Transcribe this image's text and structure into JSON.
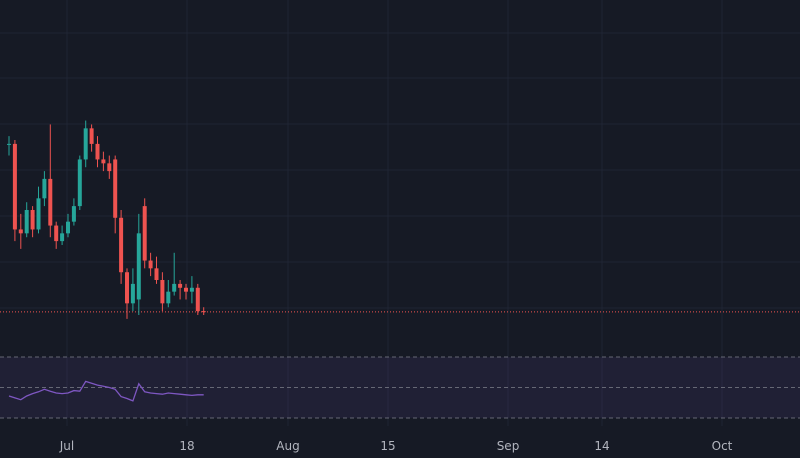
{
  "chart_data": {
    "type": "candlestick",
    "x_ticks": [
      "Jul",
      "18",
      "Aug",
      "15",
      "Sep",
      "14",
      "Oct"
    ],
    "colors": {
      "background": "#161a25",
      "grid": "#1f2433",
      "up": "#26a69a",
      "down": "#ef5350",
      "last_price_line": "#ef5350",
      "rsi_line": "#7e57c2",
      "rsi_band": "#7e57c2",
      "tick_label": "#b2b5be"
    },
    "price_scale": {
      "min": 1,
      "max": 10
    },
    "last_price": 1.98,
    "candles": [
      {
        "t": "Jun 27",
        "o": 6.3,
        "h": 6.5,
        "l": 6.0,
        "c": 6.3
      },
      {
        "t": "Jun 28",
        "o": 6.3,
        "h": 6.4,
        "l": 3.8,
        "c": 4.1
      },
      {
        "t": "Jun 29",
        "o": 4.1,
        "h": 4.5,
        "l": 3.6,
        "c": 4.0
      },
      {
        "t": "Jun 30",
        "o": 4.0,
        "h": 4.8,
        "l": 3.9,
        "c": 4.6
      },
      {
        "t": "Jul 1",
        "o": 4.6,
        "h": 4.7,
        "l": 3.9,
        "c": 4.1
      },
      {
        "t": "Jul 2",
        "o": 4.1,
        "h": 5.2,
        "l": 4.0,
        "c": 4.9
      },
      {
        "t": "Jul 3",
        "o": 4.9,
        "h": 5.6,
        "l": 4.7,
        "c": 5.4
      },
      {
        "t": "Jul 4",
        "o": 5.4,
        "h": 6.8,
        "l": 3.9,
        "c": 4.2
      },
      {
        "t": "Jul 5",
        "o": 4.2,
        "h": 4.3,
        "l": 3.6,
        "c": 3.8
      },
      {
        "t": "Jul 6",
        "o": 3.8,
        "h": 4.2,
        "l": 3.7,
        "c": 4.0
      },
      {
        "t": "Jul 7",
        "o": 4.0,
        "h": 4.5,
        "l": 3.9,
        "c": 4.3
      },
      {
        "t": "Jul 8",
        "o": 4.3,
        "h": 4.9,
        "l": 4.2,
        "c": 4.7
      },
      {
        "t": "Jul 9",
        "o": 4.7,
        "h": 6.0,
        "l": 4.6,
        "c": 5.9
      },
      {
        "t": "Jul 10",
        "o": 5.9,
        "h": 6.9,
        "l": 5.7,
        "c": 6.7
      },
      {
        "t": "Jul 11",
        "o": 6.7,
        "h": 6.8,
        "l": 6.1,
        "c": 6.3
      },
      {
        "t": "Jul 12",
        "o": 6.3,
        "h": 6.5,
        "l": 5.7,
        "c": 5.9
      },
      {
        "t": "Jul 13",
        "o": 5.9,
        "h": 6.1,
        "l": 5.6,
        "c": 5.8
      },
      {
        "t": "Jul 14",
        "o": 5.8,
        "h": 6.0,
        "l": 5.4,
        "c": 5.6
      },
      {
        "t": "Jul 15",
        "o": 5.9,
        "h": 6.0,
        "l": 4.0,
        "c": 4.4
      },
      {
        "t": "Jul 16",
        "o": 4.4,
        "h": 4.6,
        "l": 2.7,
        "c": 3.0
      },
      {
        "t": "Jul 17",
        "o": 3.0,
        "h": 3.1,
        "l": 1.8,
        "c": 2.2
      },
      {
        "t": "Jul 18",
        "o": 2.2,
        "h": 3.1,
        "l": 2.0,
        "c": 2.7
      },
      {
        "t": "Jul 19",
        "o": 2.3,
        "h": 4.5,
        "l": 1.9,
        "c": 4.0
      },
      {
        "t": "Jul 20",
        "o": 4.7,
        "h": 4.9,
        "l": 3.1,
        "c": 3.3
      },
      {
        "t": "Jul 21",
        "o": 3.3,
        "h": 3.5,
        "l": 2.9,
        "c": 3.1
      },
      {
        "t": "Jul 22",
        "o": 3.1,
        "h": 3.4,
        "l": 2.7,
        "c": 2.8
      },
      {
        "t": "Jul 23",
        "o": 2.8,
        "h": 3.0,
        "l": 2.0,
        "c": 2.2
      },
      {
        "t": "Jul 24",
        "o": 2.2,
        "h": 2.8,
        "l": 2.1,
        "c": 2.5
      },
      {
        "t": "Jul 25",
        "o": 2.5,
        "h": 3.5,
        "l": 2.4,
        "c": 2.7
      },
      {
        "t": "Jul 26",
        "o": 2.7,
        "h": 2.8,
        "l": 2.3,
        "c": 2.6
      },
      {
        "t": "Jul 27",
        "o": 2.6,
        "h": 2.7,
        "l": 2.3,
        "c": 2.5
      },
      {
        "t": "Jul 28",
        "o": 2.5,
        "h": 2.9,
        "l": 2.2,
        "c": 2.6
      },
      {
        "t": "Jul 29",
        "o": 2.6,
        "h": 2.7,
        "l": 1.9,
        "c": 2.0
      },
      {
        "t": "Jul 30",
        "o": 2.0,
        "h": 2.1,
        "l": 1.9,
        "c": 1.98
      }
    ],
    "rsi": {
      "band": [
        30,
        70
      ],
      "range": [
        0,
        100
      ],
      "values": [
        36,
        33,
        30,
        36,
        40,
        43,
        47,
        44,
        41,
        40,
        41,
        45,
        44,
        60,
        57,
        54,
        52,
        50,
        47,
        35,
        32,
        28,
        56,
        43,
        41,
        40,
        39,
        41,
        40,
        39,
        38,
        37,
        38,
        38
      ]
    }
  }
}
